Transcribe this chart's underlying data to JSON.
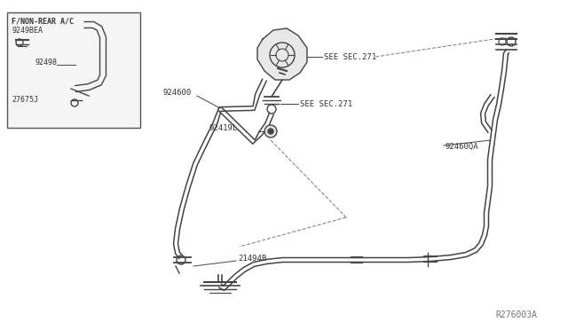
{
  "bg_color": "#ffffff",
  "line_color": "#444444",
  "text_color": "#333333",
  "diagram_number": "R276003A",
  "labels": {
    "inset_title": "F/NON-REAR A/C",
    "inset_part1": "9249BEA",
    "inset_part2": "92498",
    "inset_part3": "27675J",
    "label_924600": "924600",
    "label_92419L": "92419L",
    "label_see271a": "SEE SEC.271",
    "label_see271b": "SEE SEC.271",
    "label_21494B": "21494B",
    "label_92460QA": "92460QA"
  }
}
